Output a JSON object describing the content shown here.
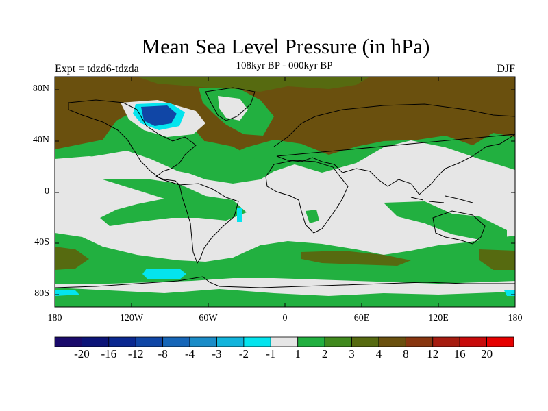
{
  "title": "Mean Sea Level Pressure (in hPa)",
  "subtitle": "108kyr BP - 000kyr BP",
  "left_label": "Expt = tdzd6-tdzda",
  "right_label": "DJF",
  "lat_ticks": [
    "80N",
    "40N",
    "0",
    "40S",
    "80S"
  ],
  "lon_ticks": [
    "180",
    "120W",
    "60W",
    "0",
    "60E",
    "120E",
    "180"
  ],
  "colorbar": {
    "labels": [
      "-20",
      "-16",
      "-12",
      "-8",
      "-4",
      "-3",
      "-2",
      "-1",
      "1",
      "2",
      "3",
      "4",
      "8",
      "12",
      "16",
      "20"
    ],
    "colors": [
      "#1a0a6b",
      "#0c1478",
      "#0a2890",
      "#1046a6",
      "#1666b8",
      "#1a8cc8",
      "#12b4dc",
      "#04e4ee",
      "#e6e6e6",
      "#22b040",
      "#408a1e",
      "#566a10",
      "#6a500e",
      "#883610",
      "#a61c10",
      "#c80a0a",
      "#e60000"
    ]
  },
  "colors": {
    "background": "#e6e6e6",
    "green": "#22b040",
    "olive": "#566a10",
    "brown": "#6a500e",
    "cyan": "#04e4ee",
    "blue": "#1046a6",
    "coast": "#000000"
  }
}
